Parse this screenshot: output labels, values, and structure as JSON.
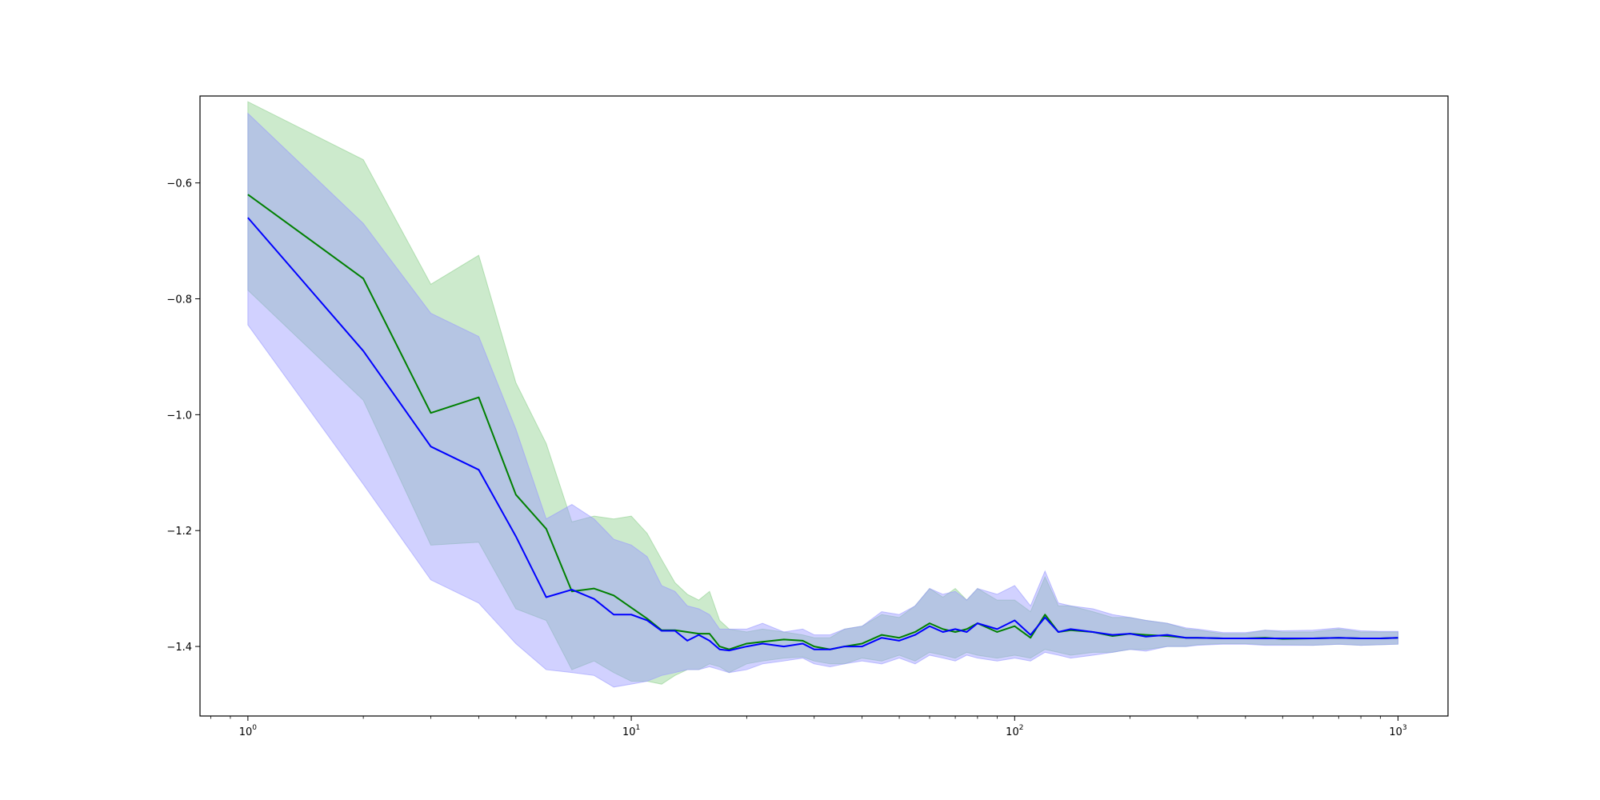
{
  "chart_data": {
    "type": "line",
    "xscale": "log",
    "xlim": [
      0.75,
      1350
    ],
    "ylim": [
      -1.52,
      -0.45
    ],
    "grid": false,
    "legend": "none",
    "xticks": [
      {
        "value": 1,
        "base": "10",
        "exp": "0"
      },
      {
        "value": 10,
        "base": "10",
        "exp": "1"
      },
      {
        "value": 100,
        "base": "10",
        "exp": "2"
      },
      {
        "value": 1000,
        "base": "10",
        "exp": "3"
      }
    ],
    "yticks": [
      {
        "value": -0.6,
        "label": "−0.6"
      },
      {
        "value": -0.8,
        "label": "−0.8"
      },
      {
        "value": -1.0,
        "label": "−1.0"
      },
      {
        "value": -1.2,
        "label": "−1.2"
      },
      {
        "value": -1.4,
        "label": "−1.4"
      }
    ],
    "series": [
      {
        "color": "#008000",
        "band_color": "#8fd08f",
        "x": [
          1,
          2,
          3,
          4,
          5,
          6,
          7,
          8,
          9,
          10,
          11,
          12,
          13,
          14,
          15,
          16,
          17,
          18,
          20,
          22,
          25,
          28,
          30,
          33,
          36,
          40,
          45,
          50,
          55,
          60,
          65,
          70,
          75,
          80,
          90,
          100,
          110,
          120,
          130,
          140,
          160,
          180,
          200,
          220,
          250,
          280,
          300,
          350,
          400,
          450,
          500,
          600,
          700,
          800,
          900,
          1000
        ],
        "y": [
          -0.62,
          -0.765,
          -0.997,
          -0.97,
          -1.138,
          -1.197,
          -1.305,
          -1.3,
          -1.312,
          -1.333,
          -1.352,
          -1.372,
          -1.372,
          -1.375,
          -1.378,
          -1.378,
          -1.4,
          -1.405,
          -1.395,
          -1.392,
          -1.388,
          -1.39,
          -1.4,
          -1.405,
          -1.4,
          -1.395,
          -1.38,
          -1.385,
          -1.375,
          -1.36,
          -1.37,
          -1.375,
          -1.37,
          -1.36,
          -1.375,
          -1.365,
          -1.385,
          -1.345,
          -1.375,
          -1.372,
          -1.375,
          -1.382,
          -1.378,
          -1.38,
          -1.382,
          -1.385,
          -1.385,
          -1.386,
          -1.386,
          -1.385,
          -1.387,
          -1.386,
          -1.385,
          -1.386,
          -1.386,
          -1.385
        ],
        "lower": [
          -0.785,
          -0.975,
          -1.225,
          -1.22,
          -1.335,
          -1.355,
          -1.44,
          -1.425,
          -1.445,
          -1.46,
          -1.46,
          -1.465,
          -1.45,
          -1.44,
          -1.44,
          -1.43,
          -1.435,
          -1.445,
          -1.43,
          -1.425,
          -1.42,
          -1.418,
          -1.425,
          -1.43,
          -1.43,
          -1.42,
          -1.425,
          -1.415,
          -1.425,
          -1.41,
          -1.415,
          -1.42,
          -1.41,
          -1.415,
          -1.42,
          -1.415,
          -1.42,
          -1.405,
          -1.41,
          -1.415,
          -1.41,
          -1.41,
          -1.405,
          -1.405,
          -1.4,
          -1.4,
          -1.397,
          -1.395,
          -1.395,
          -1.397,
          -1.397,
          -1.398,
          -1.396,
          -1.398,
          -1.397,
          -1.396
        ],
        "upper": [
          -0.46,
          -0.56,
          -0.775,
          -0.725,
          -0.945,
          -1.05,
          -1.185,
          -1.175,
          -1.18,
          -1.175,
          -1.205,
          -1.25,
          -1.29,
          -1.31,
          -1.32,
          -1.305,
          -1.355,
          -1.37,
          -1.375,
          -1.37,
          -1.375,
          -1.38,
          -1.385,
          -1.385,
          -1.37,
          -1.365,
          -1.345,
          -1.35,
          -1.33,
          -1.3,
          -1.315,
          -1.3,
          -1.32,
          -1.3,
          -1.32,
          -1.32,
          -1.34,
          -1.28,
          -1.33,
          -1.33,
          -1.34,
          -1.35,
          -1.35,
          -1.355,
          -1.36,
          -1.37,
          -1.372,
          -1.378,
          -1.378,
          -1.372,
          -1.375,
          -1.375,
          -1.37,
          -1.375,
          -1.375,
          -1.375
        ]
      },
      {
        "color": "#0000ff",
        "band_color": "#9999ff",
        "x": [
          1,
          2,
          3,
          4,
          5,
          6,
          7,
          8,
          9,
          10,
          11,
          12,
          13,
          14,
          15,
          16,
          17,
          18,
          20,
          22,
          25,
          28,
          30,
          33,
          36,
          40,
          45,
          50,
          55,
          60,
          65,
          70,
          75,
          80,
          90,
          100,
          110,
          120,
          130,
          140,
          160,
          180,
          200,
          220,
          250,
          280,
          300,
          350,
          400,
          450,
          500,
          600,
          700,
          800,
          900,
          1000
        ],
        "y": [
          -0.66,
          -0.89,
          -1.055,
          -1.095,
          -1.21,
          -1.315,
          -1.302,
          -1.318,
          -1.345,
          -1.345,
          -1.355,
          -1.373,
          -1.373,
          -1.39,
          -1.38,
          -1.39,
          -1.405,
          -1.407,
          -1.4,
          -1.395,
          -1.4,
          -1.395,
          -1.405,
          -1.405,
          -1.4,
          -1.4,
          -1.385,
          -1.39,
          -1.38,
          -1.365,
          -1.375,
          -1.37,
          -1.375,
          -1.36,
          -1.37,
          -1.355,
          -1.38,
          -1.35,
          -1.375,
          -1.37,
          -1.375,
          -1.38,
          -1.378,
          -1.383,
          -1.38,
          -1.385,
          -1.385,
          -1.386,
          -1.386,
          -1.386,
          -1.386,
          -1.386,
          -1.385,
          -1.386,
          -1.386,
          -1.385
        ],
        "lower": [
          -0.845,
          -1.12,
          -1.285,
          -1.325,
          -1.395,
          -1.44,
          -1.445,
          -1.45,
          -1.47,
          -1.465,
          -1.46,
          -1.45,
          -1.445,
          -1.44,
          -1.44,
          -1.435,
          -1.44,
          -1.445,
          -1.44,
          -1.43,
          -1.425,
          -1.42,
          -1.43,
          -1.435,
          -1.43,
          -1.425,
          -1.43,
          -1.42,
          -1.43,
          -1.415,
          -1.42,
          -1.425,
          -1.415,
          -1.42,
          -1.425,
          -1.42,
          -1.425,
          -1.41,
          -1.415,
          -1.42,
          -1.415,
          -1.41,
          -1.405,
          -1.408,
          -1.4,
          -1.4,
          -1.398,
          -1.396,
          -1.396,
          -1.398,
          -1.398,
          -1.398,
          -1.396,
          -1.398,
          -1.397,
          -1.396
        ],
        "upper": [
          -0.48,
          -0.67,
          -0.825,
          -0.865,
          -1.025,
          -1.18,
          -1.155,
          -1.18,
          -1.215,
          -1.225,
          -1.245,
          -1.295,
          -1.305,
          -1.33,
          -1.335,
          -1.345,
          -1.37,
          -1.37,
          -1.37,
          -1.36,
          -1.375,
          -1.37,
          -1.38,
          -1.38,
          -1.37,
          -1.365,
          -1.34,
          -1.345,
          -1.33,
          -1.3,
          -1.31,
          -1.305,
          -1.32,
          -1.3,
          -1.31,
          -1.295,
          -1.33,
          -1.27,
          -1.325,
          -1.33,
          -1.335,
          -1.345,
          -1.35,
          -1.355,
          -1.36,
          -1.368,
          -1.37,
          -1.376,
          -1.376,
          -1.372,
          -1.373,
          -1.372,
          -1.368,
          -1.373,
          -1.374,
          -1.374
        ]
      }
    ]
  }
}
